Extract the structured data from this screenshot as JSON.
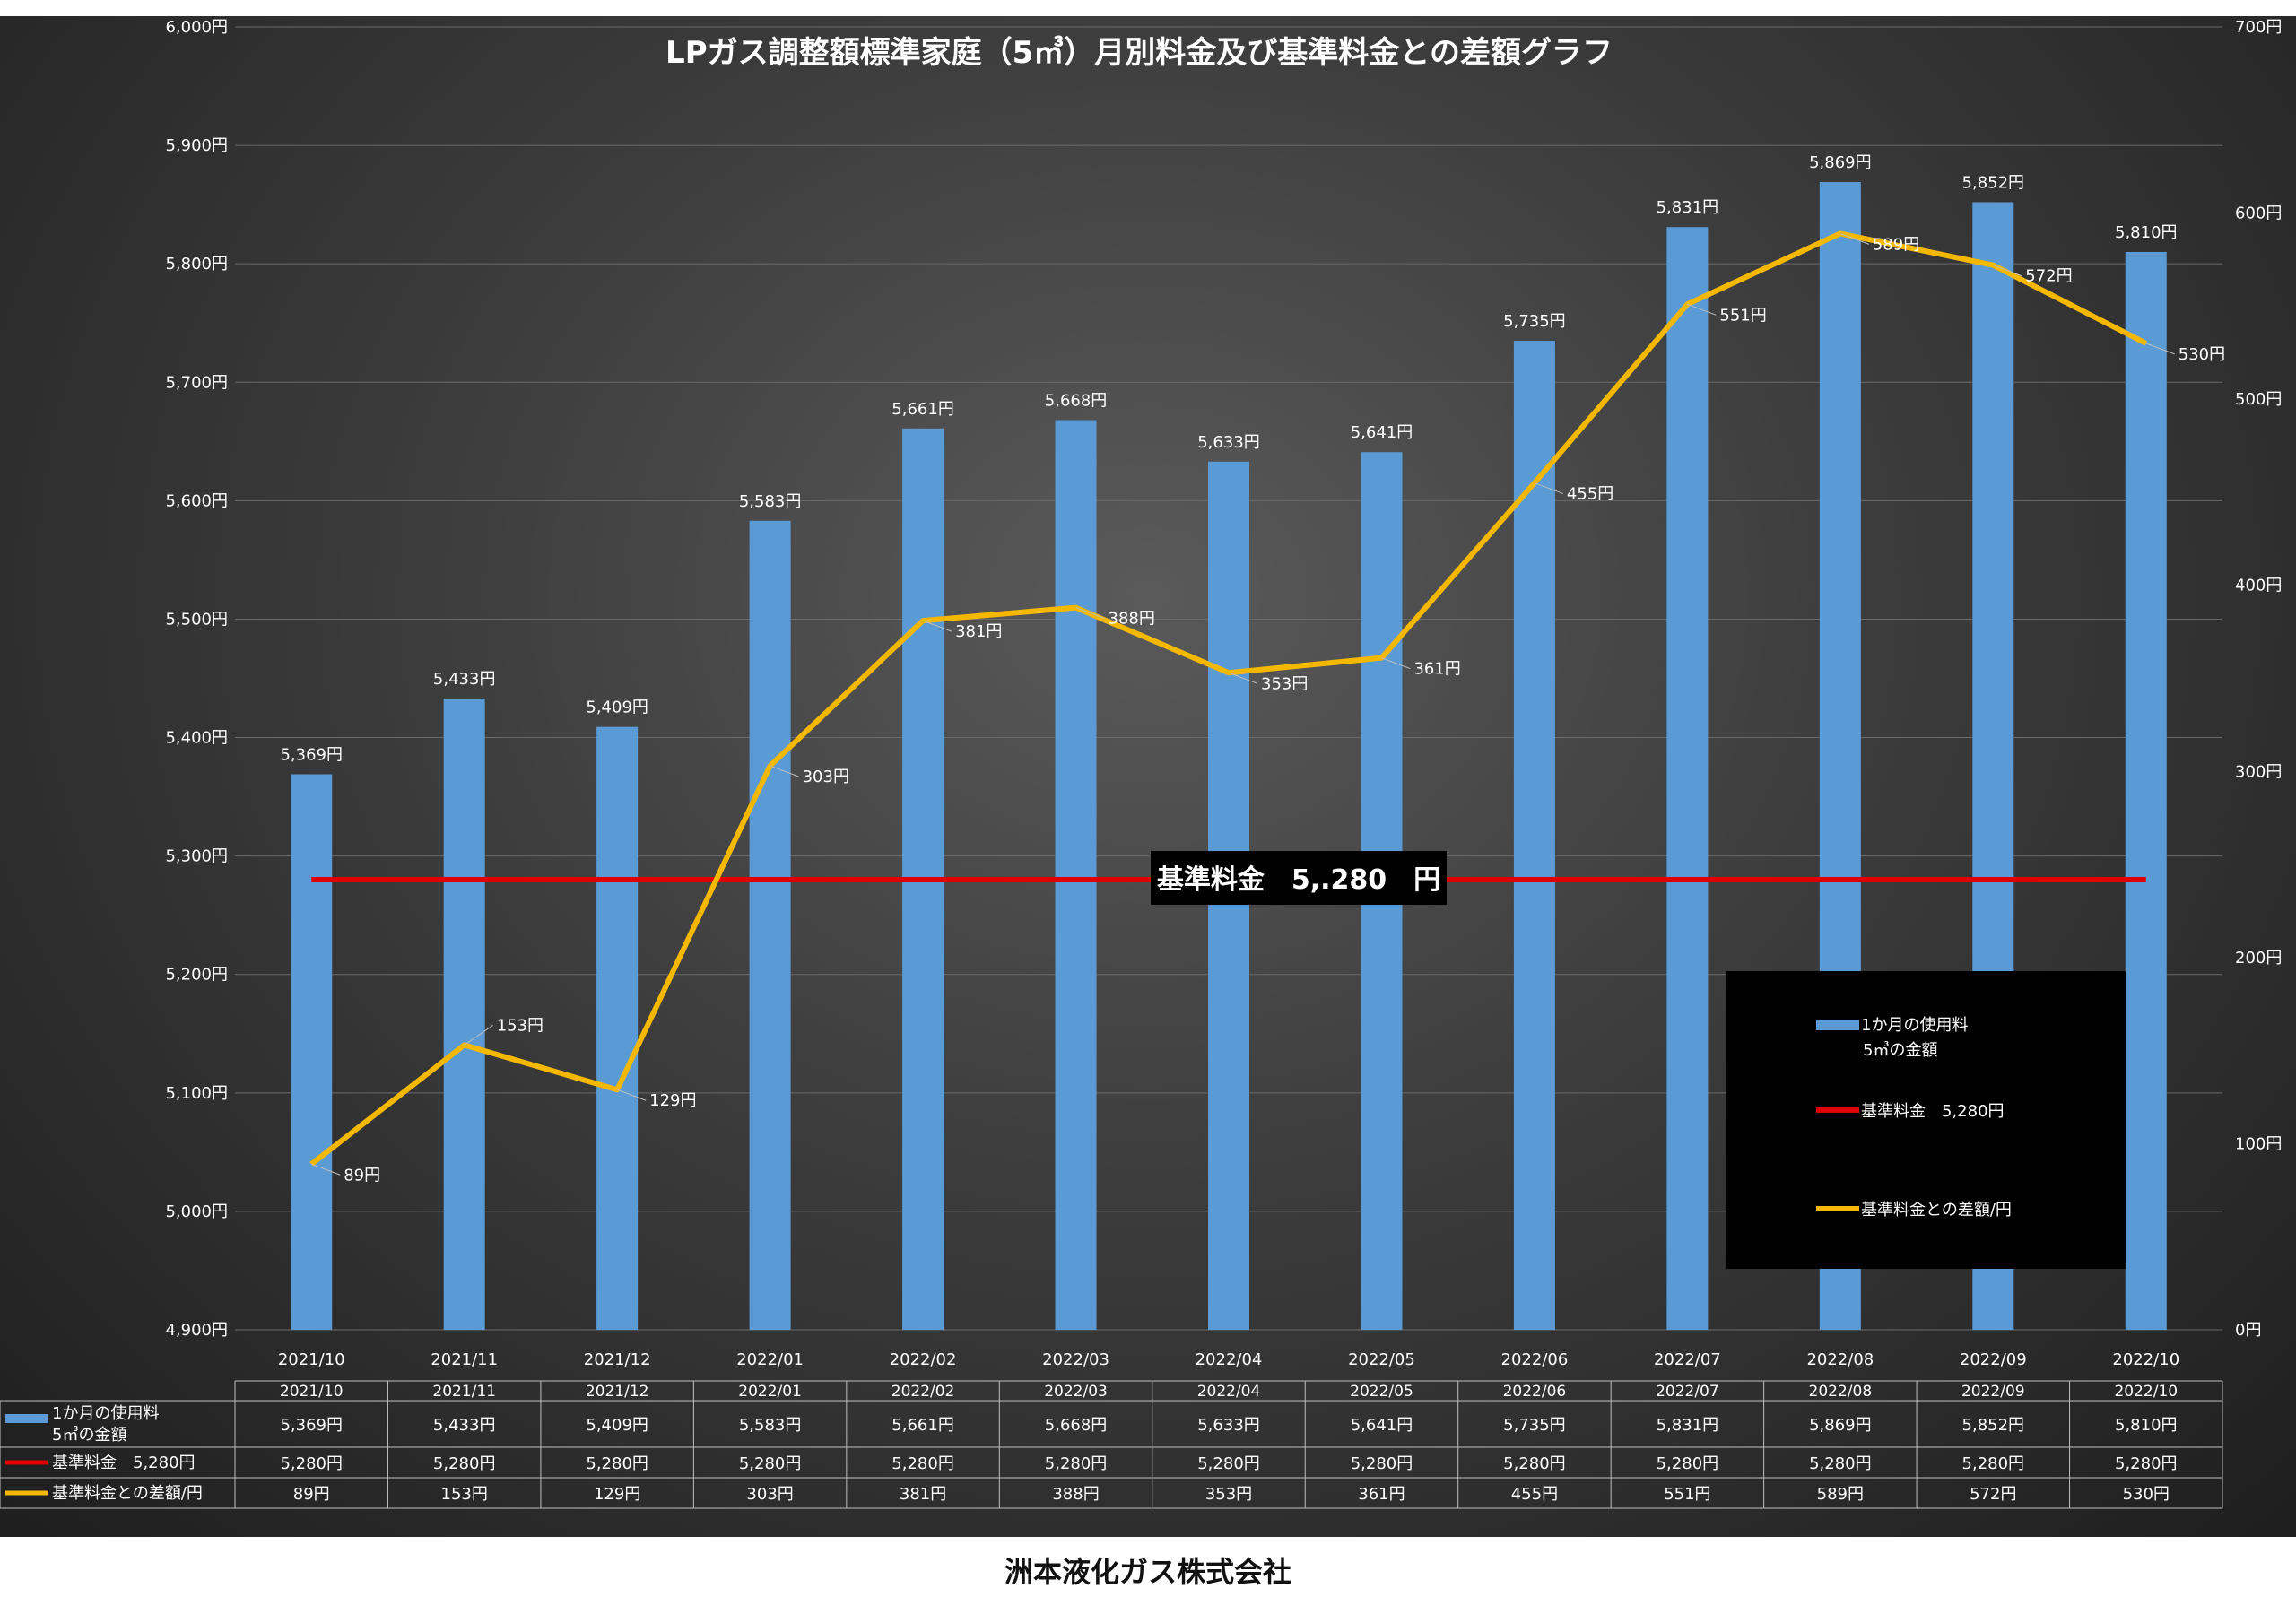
{
  "chart_data": {
    "type": "bar",
    "title": "LPガス調整額標準家庭（5㎥）月別料金及び基準料金との差額グラフ",
    "categories": [
      "2021/10",
      "2021/11",
      "2021/12",
      "2022/01",
      "2022/02",
      "2022/03",
      "2022/04",
      "2022/05",
      "2022/06",
      "2022/07",
      "2022/08",
      "2022/09",
      "2022/10"
    ],
    "series": [
      {
        "name": "1か月の使用料\n5㎥の金額",
        "type": "bar",
        "axis": "left",
        "color": "#5b9bd5",
        "values": [
          5369,
          5433,
          5409,
          5583,
          5661,
          5668,
          5633,
          5641,
          5735,
          5831,
          5869,
          5852,
          5810
        ],
        "labels": [
          "5,369円",
          "5,433円",
          "5,409円",
          "5,583円",
          "5,661円",
          "5,668円",
          "5,633円",
          "5,641円",
          "5,735円",
          "5,831円",
          "5,869円",
          "5,852円",
          "5,810円"
        ]
      },
      {
        "name": "基準料金　5,280円",
        "type": "line",
        "axis": "left",
        "color": "#e00000",
        "values": [
          5280,
          5280,
          5280,
          5280,
          5280,
          5280,
          5280,
          5280,
          5280,
          5280,
          5280,
          5280,
          5280
        ],
        "labels": [
          "5,280円",
          "5,280円",
          "5,280円",
          "5,280円",
          "5,280円",
          "5,280円",
          "5,280円",
          "5,280円",
          "5,280円",
          "5,280円",
          "5,280円",
          "5,280円",
          "5,280円"
        ]
      },
      {
        "name": "基準料金との差額/円",
        "type": "line",
        "axis": "right",
        "color": "#f5b800",
        "values": [
          89,
          153,
          129,
          303,
          381,
          388,
          353,
          361,
          455,
          551,
          589,
          572,
          530
        ],
        "labels": [
          "89円",
          "153円",
          "129円",
          "303円",
          "381円",
          "388円",
          "353円",
          "361円",
          "455円",
          "551円",
          "589円",
          "572円",
          "530円"
        ]
      }
    ],
    "y_left": {
      "min": 4900,
      "max": 6000,
      "step": 100,
      "tick_labels": [
        "4,900円",
        "5,000円",
        "5,100円",
        "5,200円",
        "5,300円",
        "5,400円",
        "5,500円",
        "5,600円",
        "5,700円",
        "5,800円",
        "5,900円",
        "6,000円"
      ]
    },
    "y_right": {
      "min": 0,
      "max": 700,
      "step": 100,
      "tick_labels": [
        "0円",
        "100円",
        "200円",
        "300円",
        "400円",
        "500円",
        "600円",
        "700円"
      ]
    },
    "annotation": "基準料金　5,.280　円",
    "legend_position": "bottom-right",
    "grid": true
  },
  "table": {
    "headers": [
      "2021/10",
      "2021/11",
      "2021/12",
      "2022/01",
      "2022/02",
      "2022/03",
      "2022/04",
      "2022/05",
      "2022/06",
      "2022/07",
      "2022/08",
      "2022/09",
      "2022/10"
    ],
    "rows": [
      {
        "label": "1か月の使用料\n5㎥の金額",
        "color": "#5b9bd5",
        "cells": [
          "5,369円",
          "5,433円",
          "5,409円",
          "5,583円",
          "5,661円",
          "5,668円",
          "5,633円",
          "5,641円",
          "5,735円",
          "5,831円",
          "5,869円",
          "5,852円",
          "5,810円"
        ]
      },
      {
        "label": "基準料金　5,280円",
        "color": "#e00000",
        "cells": [
          "5,280円",
          "5,280円",
          "5,280円",
          "5,280円",
          "5,280円",
          "5,280円",
          "5,280円",
          "5,280円",
          "5,280円",
          "5,280円",
          "5,280円",
          "5,280円",
          "5,280円"
        ]
      },
      {
        "label": "基準料金との差額/円",
        "color": "#f5b800",
        "cells": [
          "89円",
          "153円",
          "129円",
          "303円",
          "381円",
          "388円",
          "353円",
          "361円",
          "455円",
          "551円",
          "589円",
          "572円",
          "530円"
        ]
      }
    ]
  },
  "footer": {
    "company": "洲本液化ガス株式会社"
  }
}
